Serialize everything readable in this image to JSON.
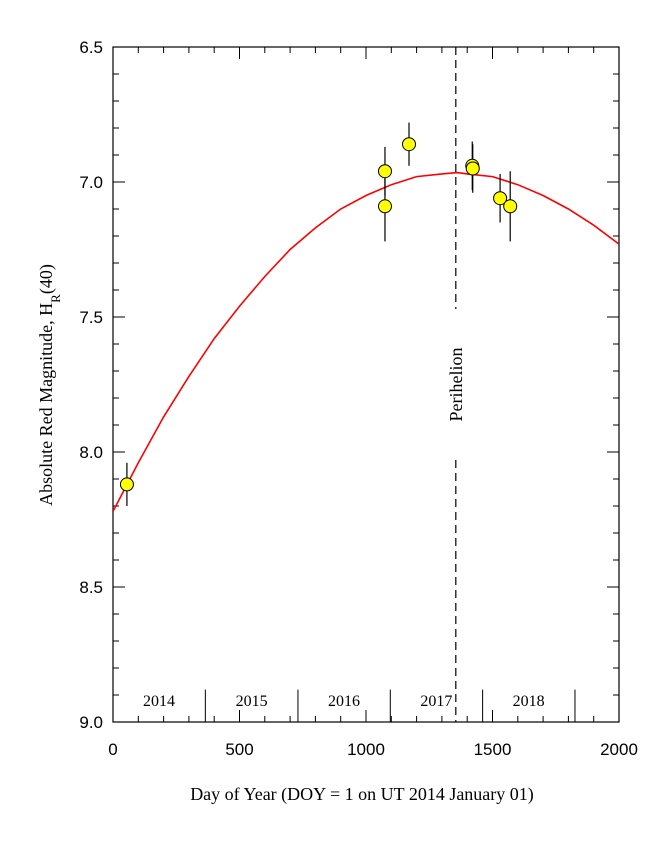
{
  "chart_data": {
    "type": "scatter",
    "title": "",
    "xlabel": "Day of Year (DOY = 1 on UT 2014 January 01)",
    "ylabel": {
      "main": "Absolute Red Magnitude, H",
      "subscript": "R",
      "suffix": "(40)"
    },
    "xlim": [
      0,
      2000
    ],
    "ylim": [
      6.5,
      9.0
    ],
    "y_inverted": true,
    "grid": false,
    "x_ticks": [
      0,
      500,
      1000,
      1500,
      2000
    ],
    "x_tick_labels": [
      "0",
      "500",
      "1000",
      "1500",
      "2000"
    ],
    "y_ticks": [
      6.5,
      7.0,
      7.5,
      8.0,
      8.5,
      9.0
    ],
    "y_tick_labels": [
      "6.5",
      "7.0",
      "7.5",
      "8.0",
      "8.5",
      "9.0"
    ],
    "points": [
      {
        "x": 55,
        "y": 8.12,
        "err": 0.08
      },
      {
        "x": 1075,
        "y": 6.96,
        "err": 0.09
      },
      {
        "x": 1075,
        "y": 7.09,
        "err": 0.13
      },
      {
        "x": 1170,
        "y": 6.86,
        "err": 0.08
      },
      {
        "x": 1420,
        "y": 6.94,
        "err": 0.09
      },
      {
        "x": 1422,
        "y": 6.95,
        "err": 0.09
      },
      {
        "x": 1530,
        "y": 7.06,
        "err": 0.09
      },
      {
        "x": 1570,
        "y": 7.09,
        "err": 0.13
      }
    ],
    "fit_curve": {
      "x": [
        0,
        100,
        200,
        300,
        400,
        500,
        600,
        700,
        800,
        900,
        1000,
        1100,
        1200,
        1300,
        1360,
        1400,
        1500,
        1600,
        1700,
        1800,
        1900,
        2000
      ],
      "y": [
        8.22,
        8.04,
        7.87,
        7.72,
        7.58,
        7.46,
        7.35,
        7.25,
        7.17,
        7.1,
        7.05,
        7.01,
        6.98,
        6.97,
        6.965,
        6.97,
        6.98,
        7.01,
        7.05,
        7.1,
        7.16,
        7.23
      ]
    },
    "perihelion": {
      "x": 1355,
      "label": "Perihelion"
    },
    "year_bands": {
      "dividers": [
        365,
        731,
        1096,
        1461,
        1826
      ],
      "labels": [
        {
          "text": "2014",
          "x": 182
        },
        {
          "text": "2015",
          "x": 548
        },
        {
          "text": "2016",
          "x": 913
        },
        {
          "text": "2017",
          "x": 1278
        },
        {
          "text": "2018",
          "x": 1643
        }
      ]
    },
    "colors": {
      "curve": "#ff0000",
      "marker_fill": "#ffff00",
      "marker_edge": "#000000",
      "axis": "#000000"
    }
  }
}
